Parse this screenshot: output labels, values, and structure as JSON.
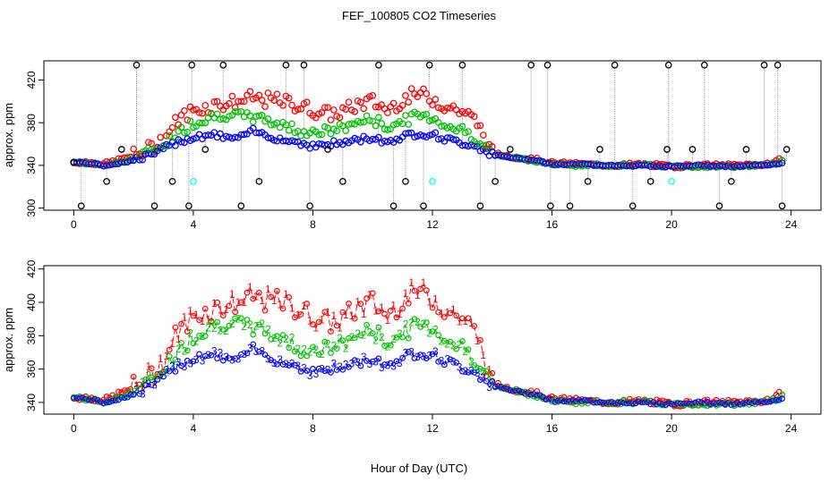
{
  "figure": {
    "title": "FEF_100805  CO2 Timeseries",
    "xlabel": "Hour of Day (UTC)",
    "colors": {
      "series_1": "#ff0000",
      "series_2": "#00c000",
      "series_3": "#0000ff",
      "flag_black": "#000000",
      "flag_cyan": "#00ffff",
      "drop_lines": "#999999"
    }
  },
  "chart_data": [
    {
      "type": "scatter",
      "title": "",
      "xlabel": "",
      "ylabel": "approx. ppm",
      "xlim": [
        -1,
        25
      ],
      "ylim": [
        298,
        438
      ],
      "xticks": [
        "0",
        "4",
        "8",
        "12",
        "16",
        "20",
        "24"
      ],
      "yticks": [
        "300",
        "340",
        "380",
        "420"
      ],
      "grid": false,
      "marker": "open circle",
      "anchors": {
        "x": [
          0,
          0.5,
          1.0,
          1.5,
          2.0,
          2.5,
          3.0,
          3.5,
          4.0,
          4.5,
          5.0,
          5.5,
          6.0,
          6.5,
          7.0,
          7.5,
          8.0,
          8.5,
          9.0,
          9.5,
          10.0,
          10.5,
          11.0,
          11.5,
          12.0,
          12.5,
          13.0,
          13.5,
          14.0,
          14.5,
          15.0,
          15.5,
          16.0,
          17.0,
          18.0,
          19.0,
          20.0,
          21.0,
          22.0,
          23.0,
          23.5,
          23.8
        ],
        "red": [
          343,
          343,
          341,
          345,
          349,
          355,
          365,
          383,
          392,
          395,
          398,
          400,
          403,
          401,
          400,
          396,
          392,
          388,
          390,
          397,
          400,
          392,
          402,
          407,
          403,
          395,
          391,
          380,
          351,
          349,
          347,
          345,
          342,
          341,
          340,
          341,
          339,
          340,
          340,
          341,
          343,
          348
        ],
        "green": [
          343,
          342,
          340,
          343,
          347,
          352,
          360,
          370,
          380,
          385,
          388,
          386,
          385,
          382,
          378,
          373,
          371,
          372,
          375,
          381,
          383,
          376,
          381,
          387,
          385,
          377,
          373,
          365,
          350,
          348,
          346,
          344,
          341,
          340,
          340,
          340,
          339,
          339,
          339,
          340,
          342,
          345
        ],
        "blue": [
          343,
          342,
          340,
          342,
          345,
          349,
          355,
          363,
          366,
          369,
          367,
          365,
          372,
          368,
          364,
          362,
          358,
          360,
          361,
          364,
          366,
          362,
          367,
          370,
          369,
          364,
          361,
          358,
          350,
          348,
          346,
          345,
          341,
          341,
          340,
          340,
          339,
          340,
          339,
          340,
          341,
          344
        ]
      },
      "flag_points_black": [
        {
          "x": 0.0,
          "y": 343
        },
        {
          "x": 0.25,
          "y": 302
        },
        {
          "x": 1.1,
          "y": 325
        },
        {
          "x": 1.6,
          "y": 355
        },
        {
          "x": 2.1,
          "y": 434
        },
        {
          "x": 2.7,
          "y": 302
        },
        {
          "x": 3.3,
          "y": 325
        },
        {
          "x": 3.85,
          "y": 302
        },
        {
          "x": 3.95,
          "y": 434
        },
        {
          "x": 4.4,
          "y": 355
        },
        {
          "x": 5.0,
          "y": 434
        },
        {
          "x": 5.6,
          "y": 302
        },
        {
          "x": 6.2,
          "y": 325
        },
        {
          "x": 7.1,
          "y": 434
        },
        {
          "x": 7.7,
          "y": 434
        },
        {
          "x": 7.9,
          "y": 302
        },
        {
          "x": 8.5,
          "y": 355
        },
        {
          "x": 9.0,
          "y": 325
        },
        {
          "x": 10.2,
          "y": 434
        },
        {
          "x": 10.7,
          "y": 302
        },
        {
          "x": 11.1,
          "y": 325
        },
        {
          "x": 11.7,
          "y": 302
        },
        {
          "x": 11.9,
          "y": 434
        },
        {
          "x": 13.0,
          "y": 434
        },
        {
          "x": 13.6,
          "y": 302
        },
        {
          "x": 14.1,
          "y": 325
        },
        {
          "x": 14.6,
          "y": 355
        },
        {
          "x": 15.3,
          "y": 434
        },
        {
          "x": 15.85,
          "y": 434
        },
        {
          "x": 15.95,
          "y": 302
        },
        {
          "x": 16.6,
          "y": 302
        },
        {
          "x": 17.2,
          "y": 325
        },
        {
          "x": 17.6,
          "y": 355
        },
        {
          "x": 18.1,
          "y": 434
        },
        {
          "x": 18.7,
          "y": 302
        },
        {
          "x": 19.3,
          "y": 325
        },
        {
          "x": 19.9,
          "y": 434
        },
        {
          "x": 19.85,
          "y": 355
        },
        {
          "x": 20.7,
          "y": 355
        },
        {
          "x": 21.1,
          "y": 434
        },
        {
          "x": 21.6,
          "y": 302
        },
        {
          "x": 22.0,
          "y": 325
        },
        {
          "x": 22.5,
          "y": 355
        },
        {
          "x": 23.1,
          "y": 434
        },
        {
          "x": 23.55,
          "y": 434
        },
        {
          "x": 23.7,
          "y": 302
        },
        {
          "x": 23.85,
          "y": 355
        }
      ],
      "flag_points_cyan": [
        {
          "x": 4.0,
          "y": 325
        },
        {
          "x": 12.0,
          "y": 325
        },
        {
          "x": 20.0,
          "y": 325
        }
      ]
    },
    {
      "type": "line",
      "title": "",
      "xlabel": "",
      "ylabel": "approx. ppm",
      "xlim": [
        -1,
        25
      ],
      "ylim": [
        333,
        422
      ],
      "xticks": [
        "0",
        "4",
        "8",
        "12",
        "16",
        "20",
        "24"
      ],
      "yticks": [
        "340",
        "360",
        "380",
        "400",
        "420"
      ],
      "grid": false,
      "point_labels": [
        "1",
        "2",
        "3"
      ],
      "series_points_note": "same three series as the upper panel; red=1, green=2, blue=3"
    }
  ]
}
